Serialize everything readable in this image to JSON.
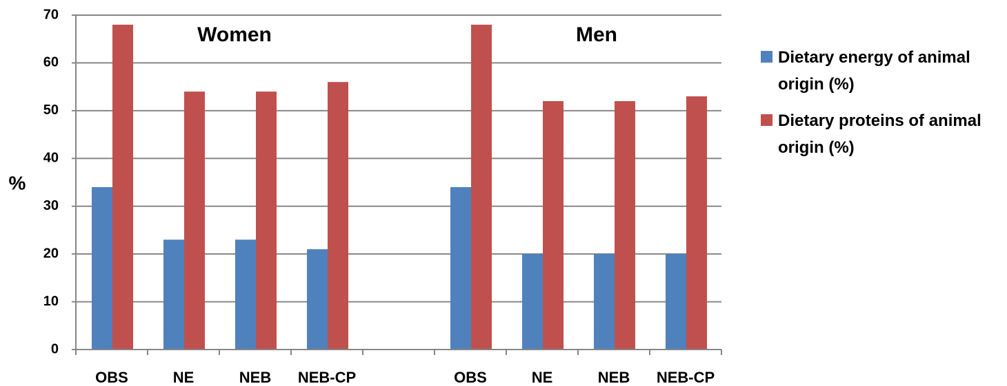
{
  "chart_data": {
    "type": "bar",
    "y_label": "%",
    "annotations": [
      "Women",
      "Men"
    ],
    "categories": [
      "OBS",
      "NE",
      "NEB",
      "NEB-CP",
      null,
      "OBS",
      "NE",
      "NEB",
      "NEB-CP"
    ],
    "series": [
      {
        "name": "Dietary energy of animal origin (%)",
        "color": "#4f81bd",
        "values": [
          34,
          23,
          23,
          21,
          null,
          34,
          20,
          20,
          20
        ]
      },
      {
        "name": "Dietary proteins of animal origin (%)",
        "color": "#c0504d",
        "values": [
          68,
          54,
          54,
          56,
          null,
          68,
          52,
          52,
          53
        ]
      }
    ],
    "ylim": [
      0,
      70
    ],
    "yticks": [
      0,
      10,
      20,
      30,
      40,
      50,
      60,
      70
    ],
    "grid": true,
    "legend": "right"
  }
}
